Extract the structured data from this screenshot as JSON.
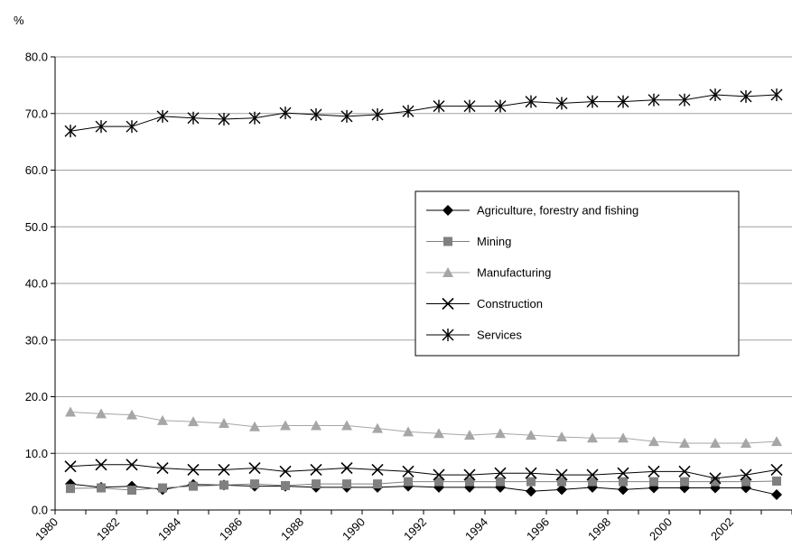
{
  "chart_data": {
    "type": "line",
    "title": "",
    "xlabel": "",
    "ylabel": "%",
    "ylim": [
      0,
      80
    ],
    "yticks": [
      "0.0",
      "10.0",
      "20.0",
      "30.0",
      "40.0",
      "50.0",
      "60.0",
      "70.0",
      "80.0"
    ],
    "xticks": [
      "1980",
      "1982",
      "1984",
      "1986",
      "1988",
      "1990",
      "1992",
      "1994",
      "1996",
      "1998",
      "2000",
      "2002"
    ],
    "grid": true,
    "legend_position": "center-right",
    "x": [
      1980.5,
      1981.5,
      1982.5,
      1983.5,
      1984.5,
      1985.5,
      1986.5,
      1987.5,
      1988.5,
      1989.5,
      1990.5,
      1991.5,
      1992.5,
      1993.5,
      1994.5,
      1995.5,
      1996.5,
      1997.5,
      1998.5,
      1999.5,
      2000.5,
      2001.5,
      2002.5,
      2003.5
    ],
    "series": [
      {
        "name": "Agriculture, forestry and fishing",
        "marker": "diamond",
        "color": "#000000",
        "values": [
          4.6,
          4.0,
          4.2,
          3.6,
          4.5,
          4.4,
          4.2,
          4.2,
          4.0,
          4.0,
          4.0,
          4.2,
          4.0,
          4.0,
          4.0,
          3.3,
          3.6,
          4.0,
          3.6,
          3.9,
          3.9,
          3.9,
          3.9,
          2.7
        ]
      },
      {
        "name": "Mining",
        "marker": "square",
        "color": "#808080",
        "values": [
          3.8,
          3.9,
          3.5,
          3.9,
          4.2,
          4.4,
          4.6,
          4.3,
          4.6,
          4.6,
          4.6,
          5.0,
          5.0,
          5.0,
          5.0,
          5.0,
          5.0,
          5.0,
          5.0,
          5.0,
          5.0,
          5.0,
          5.0,
          5.1
        ]
      },
      {
        "name": "Manufacturing",
        "marker": "triangle",
        "color": "#a6a6a6",
        "values": [
          17.3,
          17.0,
          16.8,
          15.8,
          15.6,
          15.3,
          14.7,
          14.9,
          14.9,
          14.9,
          14.4,
          13.8,
          13.5,
          13.2,
          13.5,
          13.2,
          12.9,
          12.7,
          12.7,
          12.1,
          11.8,
          11.8,
          11.8,
          12.1
        ]
      },
      {
        "name": "Construction",
        "marker": "x",
        "color": "#000000",
        "values": [
          7.7,
          8.0,
          8.0,
          7.4,
          7.1,
          7.1,
          7.4,
          6.8,
          7.1,
          7.4,
          7.1,
          6.8,
          6.2,
          6.2,
          6.5,
          6.5,
          6.2,
          6.2,
          6.5,
          6.8,
          6.8,
          5.6,
          6.2,
          7.1
        ]
      },
      {
        "name": "Services",
        "marker": "asterisk",
        "color": "#000000",
        "values": [
          66.9,
          67.7,
          67.7,
          69.5,
          69.2,
          69.0,
          69.2,
          70.1,
          69.8,
          69.5,
          69.8,
          70.4,
          71.3,
          71.3,
          71.3,
          72.1,
          71.8,
          72.1,
          72.1,
          72.4,
          72.4,
          73.3,
          73.0,
          73.3
        ]
      }
    ]
  }
}
